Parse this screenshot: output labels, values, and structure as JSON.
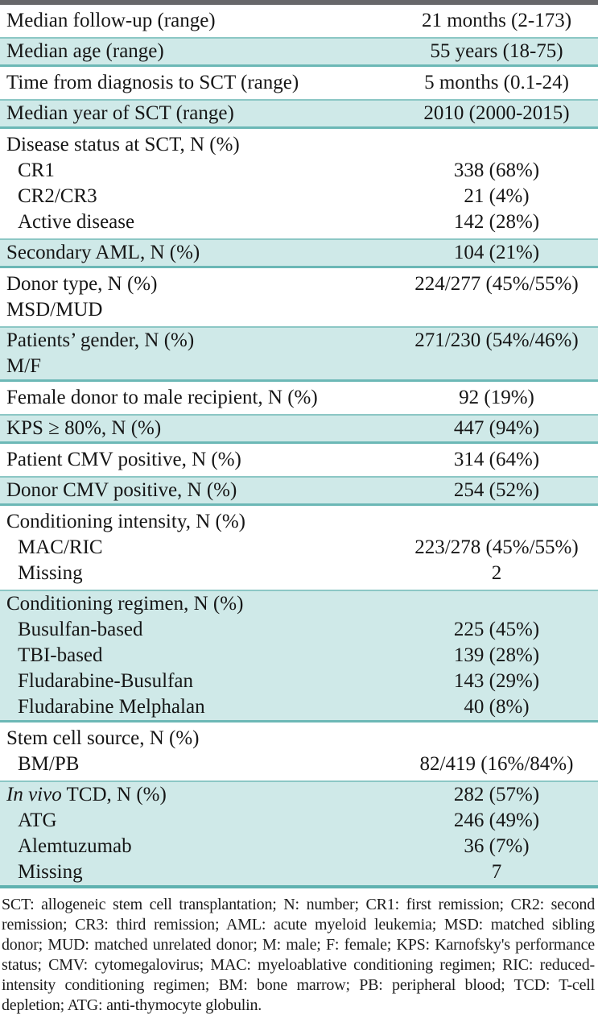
{
  "colors": {
    "teal_row_bg": "#cfe9e8",
    "teal_rule": "#6cb8b6",
    "top_rule_gray": "#67676a",
    "text": "#161616"
  },
  "table": {
    "sections": [
      {
        "bg": "white",
        "rows": [
          {
            "label": "Median follow-up (range)",
            "value": "21 months (2-173)"
          }
        ]
      },
      {
        "bg": "teal",
        "rows": [
          {
            "label": "Median age (range)",
            "value": "55 years (18-75)"
          }
        ]
      },
      {
        "bg": "white",
        "rows": [
          {
            "label": "Time from diagnosis to SCT (range)",
            "value": "5 months (0.1-24)"
          }
        ]
      },
      {
        "bg": "teal",
        "rows": [
          {
            "label": "Median year of SCT (range)",
            "value": "2010 (2000-2015)"
          }
        ]
      },
      {
        "bg": "white",
        "rows": [
          {
            "label": "Disease status at SCT, N (%)",
            "value": ""
          },
          {
            "label": "CR1",
            "value": "338 (68%)",
            "indent": true
          },
          {
            "label": "CR2/CR3",
            "value": "21 (4%)",
            "indent": true
          },
          {
            "label": "Active disease",
            "value": "142 (28%)",
            "indent": true
          }
        ]
      },
      {
        "bg": "teal",
        "rows": [
          {
            "label": "Secondary AML, N (%)",
            "value": "104 (21%)"
          }
        ]
      },
      {
        "bg": "white",
        "rows": [
          {
            "label": "Donor type, N (%)",
            "value": "224/277 (45%/55%)"
          },
          {
            "label": "MSD/MUD",
            "value": ""
          }
        ]
      },
      {
        "bg": "teal",
        "rows": [
          {
            "label": "Patients’ gender, N (%)",
            "value": "271/230 (54%/46%)"
          },
          {
            "label": "M/F",
            "value": ""
          }
        ]
      },
      {
        "bg": "white",
        "rows": [
          {
            "label": "Female donor to male recipient, N (%)",
            "value": "92 (19%)"
          }
        ]
      },
      {
        "bg": "teal",
        "rows": [
          {
            "label": "KPS ≥ 80%, N (%)",
            "value": "447 (94%)"
          }
        ]
      },
      {
        "bg": "white",
        "rows": [
          {
            "label": "Patient CMV positive, N (%)",
            "value": "314 (64%)"
          }
        ]
      },
      {
        "bg": "teal",
        "rows": [
          {
            "label": "Donor CMV positive, N (%)",
            "value": "254 (52%)"
          }
        ]
      },
      {
        "bg": "white",
        "rows": [
          {
            "label": "Conditioning intensity, N (%)",
            "value": ""
          },
          {
            "label": "MAC/RIC",
            "value": "223/278 (45%/55%)",
            "indent": true
          },
          {
            "label": "Missing",
            "value": "2",
            "indent": true
          }
        ]
      },
      {
        "bg": "teal",
        "rows": [
          {
            "label": "Conditioning regimen, N (%)",
            "value": ""
          },
          {
            "label": "Busulfan-based",
            "value": "225 (45%)",
            "indent": true
          },
          {
            "label": "TBI-based",
            "value": "139 (28%)",
            "indent": true
          },
          {
            "label": "Fludarabine-Busulfan",
            "value": "143 (29%)",
            "indent": true
          },
          {
            "label": "Fludarabine Melphalan",
            "value": "40 (8%)",
            "indent": true
          }
        ]
      },
      {
        "bg": "white",
        "rows": [
          {
            "label": "Stem cell source, N (%)",
            "value": ""
          },
          {
            "label": "BM/PB",
            "value": "82/419 (16%/84%)",
            "indent": true
          }
        ]
      },
      {
        "bg": "teal",
        "rows": [
          {
            "italic": "In vivo",
            "label": " TCD, N (%)",
            "value": "282 (57%)"
          },
          {
            "label": "ATG",
            "value": "246 (49%)",
            "indent": true
          },
          {
            "label": "Alemtuzumab",
            "value": "36 (7%)",
            "indent": true
          },
          {
            "label": "Missing",
            "value": "7",
            "indent": true
          }
        ]
      }
    ]
  },
  "footnote": "SCT: allogeneic stem cell transplantation; N: number; CR1: first remission; CR2: second remission; CR3: third remission; AML: acute myeloid leukemia; MSD: matched sibling donor; MUD: matched unrelated donor; M: male; F: female; KPS: Karnofsky's performance status; CMV: cytomegalovirus; MAC: myeloablative conditioning regimen; RIC: reduced-intensity conditioning regimen; BM: bone marrow; PB: peripheral blood; TCD: T-cell depletion; ATG: anti-thymocyte globulin."
}
